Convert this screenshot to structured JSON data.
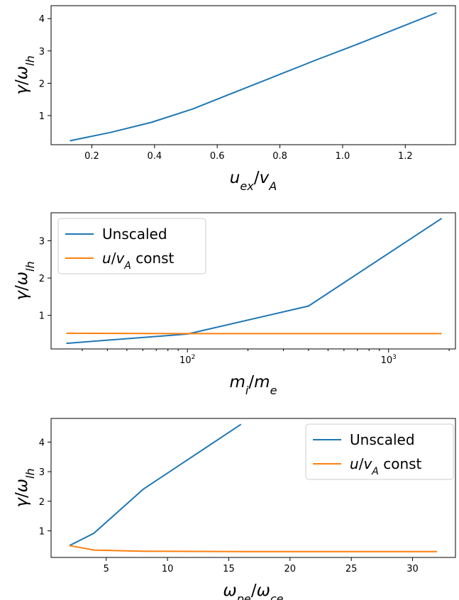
{
  "colors": {
    "series0": "#1f77b4",
    "series1": "#ff7f0e"
  },
  "chart_data": [
    {
      "type": "line",
      "xscale": "linear",
      "xlabel": "u_ex/v_A",
      "ylabel": "γ/ω_lh",
      "xlim": [
        0.07,
        1.36
      ],
      "ylim": [
        0.1,
        4.4
      ],
      "xticks": [
        0.2,
        0.4,
        0.6,
        0.8,
        1.0,
        1.2
      ],
      "xticklabels": [
        "0.2",
        "0.4",
        "0.6",
        "0.8",
        "1.0",
        "1.2"
      ],
      "yticks": [
        1,
        2,
        3,
        4
      ],
      "yticklabels": [
        "1",
        "2",
        "3",
        "4"
      ],
      "series": [
        {
          "x": [
            0.13,
            0.26,
            0.39,
            0.52,
            0.65,
            0.78,
            0.91,
            1.04,
            1.17,
            1.3
          ],
          "y": [
            0.22,
            0.48,
            0.79,
            1.2,
            1.7,
            2.2,
            2.7,
            3.18,
            3.68,
            4.18
          ]
        }
      ]
    },
    {
      "type": "line",
      "xscale": "log",
      "xlabel": "m_i/m_e",
      "ylabel": "γ/ω_lh",
      "xlim": [
        21,
        2150
      ],
      "ylim": [
        0.1,
        3.75
      ],
      "xticks": [
        100,
        1000
      ],
      "xticklabels": [
        "10",
        "10"
      ],
      "xtick_exponents": [
        "2",
        "3"
      ],
      "yticks": [
        1,
        2,
        3
      ],
      "yticklabels": [
        "1",
        "2",
        "3"
      ],
      "legend": {
        "placement": "upper-left",
        "entries": [
          "Unscaled",
          "u/v_A const"
        ]
      },
      "series": [
        {
          "name": "Unscaled",
          "x": [
            25,
            100,
            400,
            1836
          ],
          "y": [
            0.25,
            0.5,
            1.25,
            3.6
          ]
        },
        {
          "name": "u/v_A const",
          "x": [
            25,
            100,
            400,
            1836
          ],
          "y": [
            0.52,
            0.51,
            0.51,
            0.51
          ]
        }
      ]
    },
    {
      "type": "line",
      "xscale": "linear",
      "xlabel": "ω_pe/ω_ce",
      "ylabel": "γ/ω_lh",
      "xlim": [
        0.5,
        33.5
      ],
      "ylim": [
        0.1,
        4.8
      ],
      "xticks": [
        5,
        10,
        15,
        20,
        25,
        30
      ],
      "xticklabels": [
        "5",
        "10",
        "15",
        "20",
        "25",
        "30"
      ],
      "yticks": [
        1,
        2,
        3,
        4
      ],
      "yticklabels": [
        "1",
        "2",
        "3",
        "4"
      ],
      "legend": {
        "placement": "upper-right",
        "entries": [
          "Unscaled",
          "u/v_A const"
        ]
      },
      "series": [
        {
          "name": "Unscaled",
          "x": [
            2,
            4,
            8,
            16
          ],
          "y": [
            0.5,
            0.92,
            2.4,
            4.6
          ]
        },
        {
          "name": "u/v_A const",
          "x": [
            2,
            4,
            8,
            16,
            32
          ],
          "y": [
            0.5,
            0.35,
            0.31,
            0.3,
            0.3
          ]
        }
      ]
    }
  ]
}
